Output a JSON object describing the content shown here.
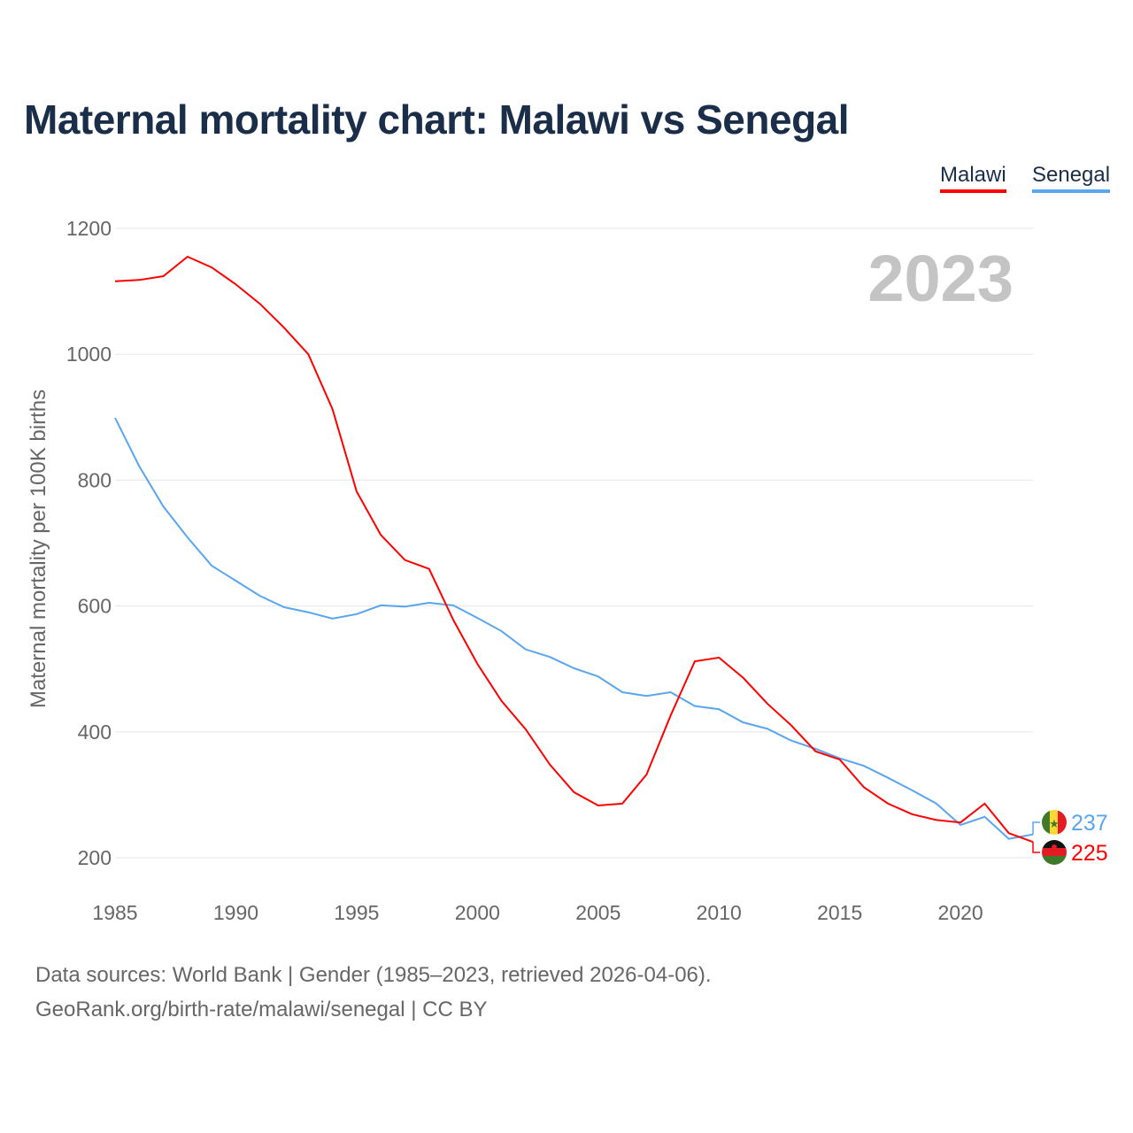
{
  "chart_data": {
    "type": "line",
    "title": "Maternal mortality chart: Malawi vs Senegal",
    "ylabel": "Maternal mortality per 100K births",
    "xlabel": "",
    "ylim": [
      200,
      1200
    ],
    "xlim": [
      1985,
      2023
    ],
    "yticks": [
      "200",
      "400",
      "600",
      "800",
      "1000",
      "1200"
    ],
    "xticks": [
      "1985",
      "1990",
      "1995",
      "2000",
      "2005",
      "2010",
      "2015",
      "2020"
    ],
    "year_watermark": "2023",
    "grid": true,
    "legend_placement": "top-right",
    "x": [
      1985,
      1986,
      1987,
      1988,
      1989,
      1990,
      1991,
      1992,
      1993,
      1994,
      1995,
      1996,
      1997,
      1998,
      1999,
      2000,
      2001,
      2002,
      2003,
      2004,
      2005,
      2006,
      2007,
      2008,
      2009,
      2010,
      2011,
      2012,
      2013,
      2014,
      2015,
      2016,
      2017,
      2018,
      2019,
      2020,
      2021,
      2022,
      2023
    ],
    "series": [
      {
        "name": "Malawi",
        "color": "#ff0000",
        "end_label": "225",
        "values": [
          1116,
          1118,
          1124,
          1155,
          1138,
          1111,
          1080,
          1042,
          1000,
          913,
          782,
          713,
          673,
          659,
          578,
          508,
          449,
          404,
          348,
          304,
          283,
          286,
          332,
          426,
          512,
          518,
          486,
          445,
          410,
          369,
          356,
          312,
          286,
          269,
          260,
          256,
          286,
          239,
          225
        ]
      },
      {
        "name": "Senegal",
        "color": "#5aa5ee",
        "end_label": "237",
        "values": [
          899,
          822,
          758,
          709,
          664,
          640,
          616,
          598,
          590,
          580,
          587,
          601,
          599,
          605,
          601,
          581,
          560,
          531,
          519,
          501,
          488,
          463,
          457,
          463,
          441,
          436,
          415,
          405,
          386,
          373,
          358,
          346,
          327,
          307,
          286,
          252,
          265,
          230,
          237
        ]
      }
    ]
  },
  "footer": {
    "sources": "Data sources: World Bank | Gender (1985–2023, retrieved 2026-04-06).",
    "link": "GeoRank.org/birth-rate/malawi/senegal | CC BY"
  }
}
